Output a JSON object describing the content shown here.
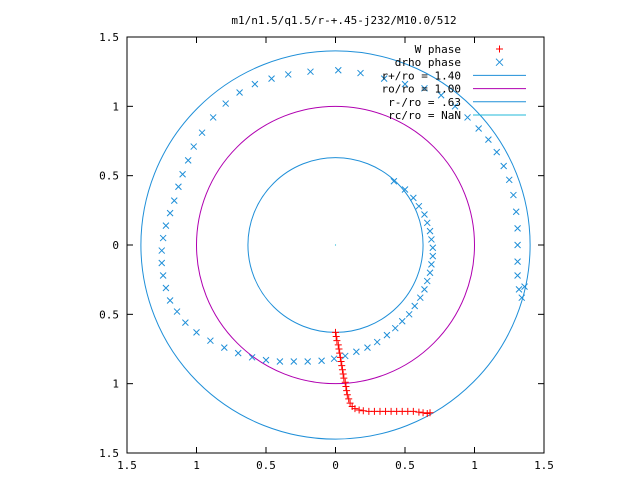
{
  "chart_data": {
    "type": "scatter",
    "title": "m1/n1.5/q1.5/r-+.45-j232/M10.0/512",
    "xlim": [
      -1.5,
      1.5
    ],
    "ylim": [
      -1.5,
      1.5
    ],
    "x_ticks": [
      {
        "v": -1.5,
        "label": "1.5"
      },
      {
        "v": -1,
        "label": "1"
      },
      {
        "v": -0.5,
        "label": "0.5"
      },
      {
        "v": 0,
        "label": "0"
      },
      {
        "v": 0.5,
        "label": "0.5"
      },
      {
        "v": 1,
        "label": "1"
      },
      {
        "v": 1.5,
        "label": "1.5"
      }
    ],
    "y_ticks": [
      {
        "v": 1.5,
        "label": "1.5"
      },
      {
        "v": 1,
        "label": "1"
      },
      {
        "v": 0.5,
        "label": "0.5"
      },
      {
        "v": 0,
        "label": "0"
      },
      {
        "v": -0.5,
        "label": "0.5"
      },
      {
        "v": -1,
        "label": "1"
      },
      {
        "v": -1.5,
        "label": "1.5"
      }
    ],
    "grid": false,
    "legend_position": "top-right",
    "legend": [
      {
        "label": "W phase",
        "kind": "plus",
        "color": "#ff0000"
      },
      {
        "label": "drho phase",
        "kind": "cross",
        "color": "#1f8fd8"
      },
      {
        "label": "r+/ro = 1.40",
        "kind": "line",
        "color": "#1f8fd8"
      },
      {
        "label": "ro/ro = 1.00",
        "kind": "line",
        "color": "#b000b0"
      },
      {
        "label": "r-/ro = .63",
        "kind": "line",
        "color": "#1f8fd8"
      },
      {
        "label": "rc/ro = NaN",
        "kind": "line",
        "color": "#20b8d8"
      }
    ],
    "circles": [
      {
        "name": "r+/ro",
        "r": 1.4,
        "color": "#1f8fd8"
      },
      {
        "name": "ro/ro",
        "r": 1.0,
        "color": "#b000b0"
      },
      {
        "name": "r-/ro",
        "r": 0.63,
        "color": "#1f8fd8"
      }
    ],
    "series": [
      {
        "name": "W phase",
        "marker": "plus",
        "color": "#ff0000",
        "points": [
          [
            0.0,
            -0.63
          ],
          [
            0.005,
            -0.66
          ],
          [
            0.01,
            -0.69
          ],
          [
            0.02,
            -0.72
          ],
          [
            0.025,
            -0.75
          ],
          [
            0.03,
            -0.78
          ],
          [
            0.035,
            -0.81
          ],
          [
            0.04,
            -0.84
          ],
          [
            0.045,
            -0.87
          ],
          [
            0.05,
            -0.9
          ],
          [
            0.055,
            -0.93
          ],
          [
            0.06,
            -0.96
          ],
          [
            0.07,
            -0.99
          ],
          [
            0.075,
            -1.02
          ],
          [
            0.08,
            -1.05
          ],
          [
            0.085,
            -1.08
          ],
          [
            0.095,
            -1.11
          ],
          [
            0.105,
            -1.14
          ],
          [
            0.12,
            -1.165
          ],
          [
            0.14,
            -1.18
          ],
          [
            0.17,
            -1.19
          ],
          [
            0.2,
            -1.195
          ],
          [
            0.24,
            -1.2
          ],
          [
            0.28,
            -1.2
          ],
          [
            0.32,
            -1.2
          ],
          [
            0.36,
            -1.2
          ],
          [
            0.4,
            -1.2
          ],
          [
            0.44,
            -1.2
          ],
          [
            0.48,
            -1.2
          ],
          [
            0.52,
            -1.2
          ],
          [
            0.56,
            -1.2
          ],
          [
            0.6,
            -1.205
          ],
          [
            0.63,
            -1.21
          ],
          [
            0.66,
            -1.215
          ],
          [
            0.68,
            -1.21
          ]
        ]
      },
      {
        "name": "drho phase",
        "marker": "cross",
        "color": "#1f8fd8",
        "points": [
          [
            0.42,
            0.46
          ],
          [
            0.5,
            0.4
          ],
          [
            0.56,
            0.34
          ],
          [
            0.6,
            0.28
          ],
          [
            0.64,
            0.22
          ],
          [
            0.66,
            0.16
          ],
          [
            0.68,
            0.1
          ],
          [
            0.69,
            0.04
          ],
          [
            0.7,
            -0.02
          ],
          [
            0.7,
            -0.08
          ],
          [
            0.69,
            -0.14
          ],
          [
            0.68,
            -0.2
          ],
          [
            0.66,
            -0.26
          ],
          [
            0.64,
            -0.32
          ],
          [
            0.61,
            -0.38
          ],
          [
            0.57,
            -0.44
          ],
          [
            0.53,
            -0.5
          ],
          [
            0.48,
            -0.55
          ],
          [
            0.43,
            -0.6
          ],
          [
            0.37,
            -0.65
          ],
          [
            0.3,
            -0.7
          ],
          [
            0.23,
            -0.74
          ],
          [
            0.15,
            -0.77
          ],
          [
            0.07,
            -0.8
          ],
          [
            -0.01,
            -0.82
          ],
          [
            -0.1,
            -0.835
          ],
          [
            -0.2,
            -0.84
          ],
          [
            -0.3,
            -0.84
          ],
          [
            -0.4,
            -0.84
          ],
          [
            -0.5,
            -0.83
          ],
          [
            -0.6,
            -0.81
          ],
          [
            -0.7,
            -0.78
          ],
          [
            -0.8,
            -0.74
          ],
          [
            -0.9,
            -0.69
          ],
          [
            -1.0,
            -0.63
          ],
          [
            -1.08,
            -0.56
          ],
          [
            -1.14,
            -0.48
          ],
          [
            -1.19,
            -0.4
          ],
          [
            -1.22,
            -0.31
          ],
          [
            -1.24,
            -0.22
          ],
          [
            -1.25,
            -0.13
          ],
          [
            -1.25,
            -0.04
          ],
          [
            -1.24,
            0.05
          ],
          [
            -1.22,
            0.14
          ],
          [
            -1.19,
            0.23
          ],
          [
            -1.16,
            0.32
          ],
          [
            -1.13,
            0.42
          ],
          [
            -1.1,
            0.51
          ],
          [
            -1.06,
            0.61
          ],
          [
            -1.02,
            0.71
          ],
          [
            -0.96,
            0.81
          ],
          [
            -0.88,
            0.92
          ],
          [
            -0.79,
            1.02
          ],
          [
            -0.69,
            1.1
          ],
          [
            -0.58,
            1.16
          ],
          [
            -0.46,
            1.2
          ],
          [
            -0.34,
            1.23
          ],
          [
            -0.18,
            1.25
          ],
          [
            0.02,
            1.26
          ],
          [
            0.18,
            1.24
          ],
          [
            0.35,
            1.2
          ],
          [
            0.5,
            1.16
          ],
          [
            0.64,
            1.13
          ],
          [
            0.76,
            1.08
          ],
          [
            0.86,
            1.0
          ],
          [
            0.95,
            0.92
          ],
          [
            1.03,
            0.84
          ],
          [
            1.1,
            0.76
          ],
          [
            1.16,
            0.67
          ],
          [
            1.21,
            0.57
          ],
          [
            1.25,
            0.47
          ],
          [
            1.28,
            0.36
          ],
          [
            1.3,
            0.24
          ],
          [
            1.31,
            0.12
          ],
          [
            1.31,
            0.0
          ],
          [
            1.31,
            -0.12
          ],
          [
            1.31,
            -0.22
          ],
          [
            1.32,
            -0.32
          ],
          [
            1.34,
            -0.38
          ],
          [
            1.36,
            -0.3
          ]
        ]
      }
    ]
  }
}
